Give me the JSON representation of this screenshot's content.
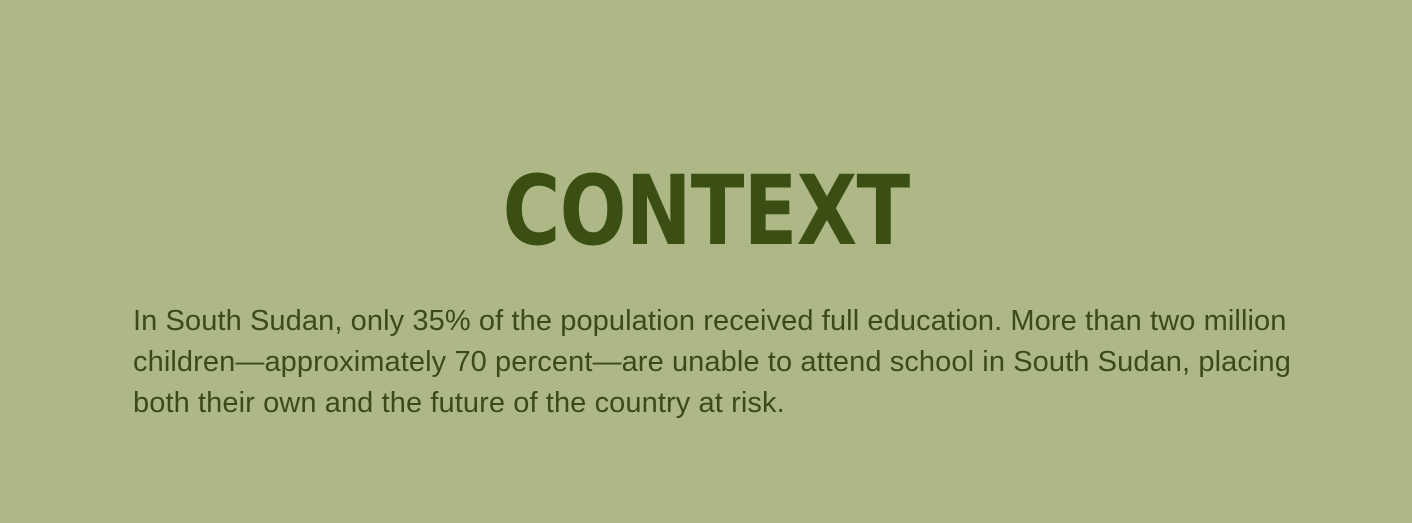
{
  "heading": "CONTEXT",
  "paragraph": "In South Sudan, only 35% of the population received full education. More than two million children—approximately 70 percent—are unable to attend school in South Sudan, placing both their own and the future of the country at risk.",
  "colors": {
    "background": "#aeb886",
    "heading": "#3b4f14",
    "text": "#3d4a17"
  }
}
